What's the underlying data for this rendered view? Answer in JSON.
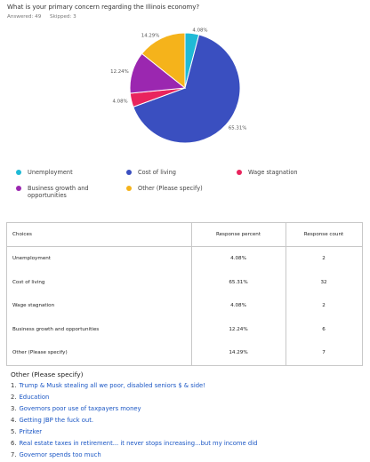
{
  "question": "What is your primary concern regarding the Illinois economy?",
  "answered_label": "Answered: 49",
  "skipped_label": "Skipped: 3",
  "chart_data": {
    "type": "pie",
    "slices": [
      {
        "label": "Unemployment",
        "value": 4.08,
        "display": "4.08%",
        "color": "#1fbad6"
      },
      {
        "label": "Cost of living",
        "value": 65.31,
        "display": "65.31%",
        "color": "#3a4fc0"
      },
      {
        "label": "Wage stagnation",
        "value": 4.08,
        "display": "4.08%",
        "color": "#e9245d"
      },
      {
        "label": "Business growth and opportunities",
        "value": 12.24,
        "display": "12.24%",
        "color": "#9b27b0"
      },
      {
        "label": "Other (Please specify)",
        "value": 14.29,
        "display": "14.29%",
        "color": "#f5b31b"
      }
    ],
    "legend_position": "bottom"
  },
  "table": {
    "headers": {
      "choice": "Choices",
      "percent": "Response percent",
      "count": "Response count"
    },
    "rows": [
      {
        "choice": "Unemployment",
        "percent": "4.08%",
        "count": "2"
      },
      {
        "choice": "Cost of living",
        "percent": "65.31%",
        "count": "32"
      },
      {
        "choice": "Wage stagnation",
        "percent": "4.08%",
        "count": "2"
      },
      {
        "choice": "Business growth and opportunities",
        "percent": "12.24%",
        "count": "6"
      },
      {
        "choice": "Other (Please specify)",
        "percent": "14.29%",
        "count": "7"
      }
    ]
  },
  "other": {
    "title": "Other (Please specify)",
    "answers": [
      {
        "num": "1.",
        "text": "Trump & Musk stealing all we poor, disabled seniors $ & side!"
      },
      {
        "num": "2.",
        "text": "Education"
      },
      {
        "num": "3.",
        "text": "Governors poor use of taxpayers money"
      },
      {
        "num": "4.",
        "text": "Getting JBP the fuck out."
      },
      {
        "num": "5.",
        "text": "Pritzker"
      },
      {
        "num": "6.",
        "text": "Real estate taxes in retirement... it never stops increasing...but my income did"
      },
      {
        "num": "7.",
        "text": "Governor spends too much"
      }
    ]
  }
}
